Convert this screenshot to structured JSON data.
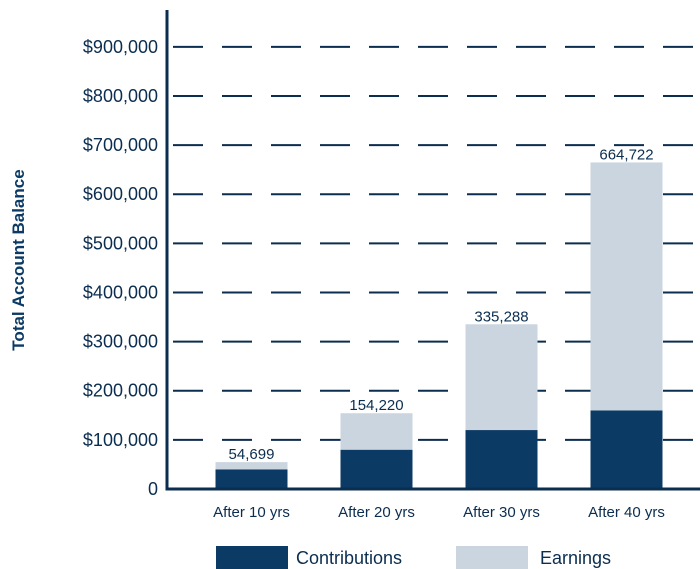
{
  "chart_data": {
    "type": "bar",
    "stacked": true,
    "title": "",
    "xlabel": "",
    "ylabel": "Total Account Balance",
    "ylim": [
      0,
      975000
    ],
    "yticks": [
      0,
      100000,
      200000,
      300000,
      400000,
      500000,
      600000,
      700000,
      800000,
      900000
    ],
    "ytick_labels": [
      "0",
      "$100,000",
      "$200,000",
      "$300,000",
      "$400,000",
      "$500,000",
      "$600,000",
      "$700,000",
      "$800,000",
      "$900,000"
    ],
    "grid": "horizontal dashed",
    "legend_position": "bottom",
    "categories": [
      "After 10 yrs",
      "After 20 yrs",
      "After 30 yrs",
      "After 40 yrs"
    ],
    "totals": [
      54699,
      154220,
      335288,
      664722
    ],
    "total_labels": [
      "54,699",
      "154,220",
      "335,288",
      "664,722"
    ],
    "series": [
      {
        "name": "Contributions",
        "color": "#0b3a64",
        "values": [
          40000,
          80000,
          120000,
          160000
        ]
      },
      {
        "name": "Earnings",
        "color": "#cbd5df",
        "values": [
          14699,
          74220,
          215288,
          504722
        ]
      }
    ],
    "axis_color": "#0b2d4f",
    "text_color": "#0b2d4f",
    "ylabel_color": "#0b3a64"
  }
}
